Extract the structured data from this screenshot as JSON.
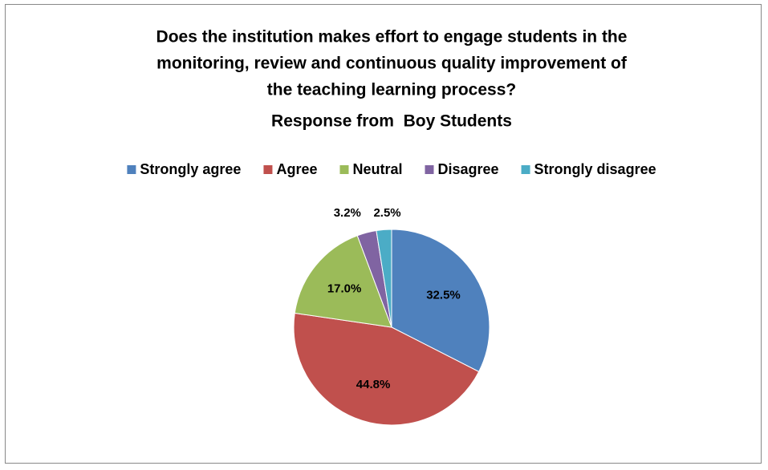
{
  "chart_data": {
    "type": "pie",
    "title": [
      "Does the institution makes effort to engage students in the",
      "monitoring, review and continuous quality improvement of",
      "the teaching learning process?"
    ],
    "subtitle": "Response from  Boy Students",
    "categories": [
      "Strongly agree",
      "Agree",
      "Neutral",
      "Disagree",
      "Strongly disagree"
    ],
    "values": [
      32.5,
      44.8,
      17.0,
      3.2,
      2.5
    ],
    "value_labels": [
      "32.5%",
      "44.8%",
      "17.0%",
      "3.2%",
      "2.5%"
    ],
    "colors": [
      "#4f81bd",
      "#c0504d",
      "#9bbb59",
      "#8064a2",
      "#4bacc6"
    ],
    "legend": "top"
  }
}
